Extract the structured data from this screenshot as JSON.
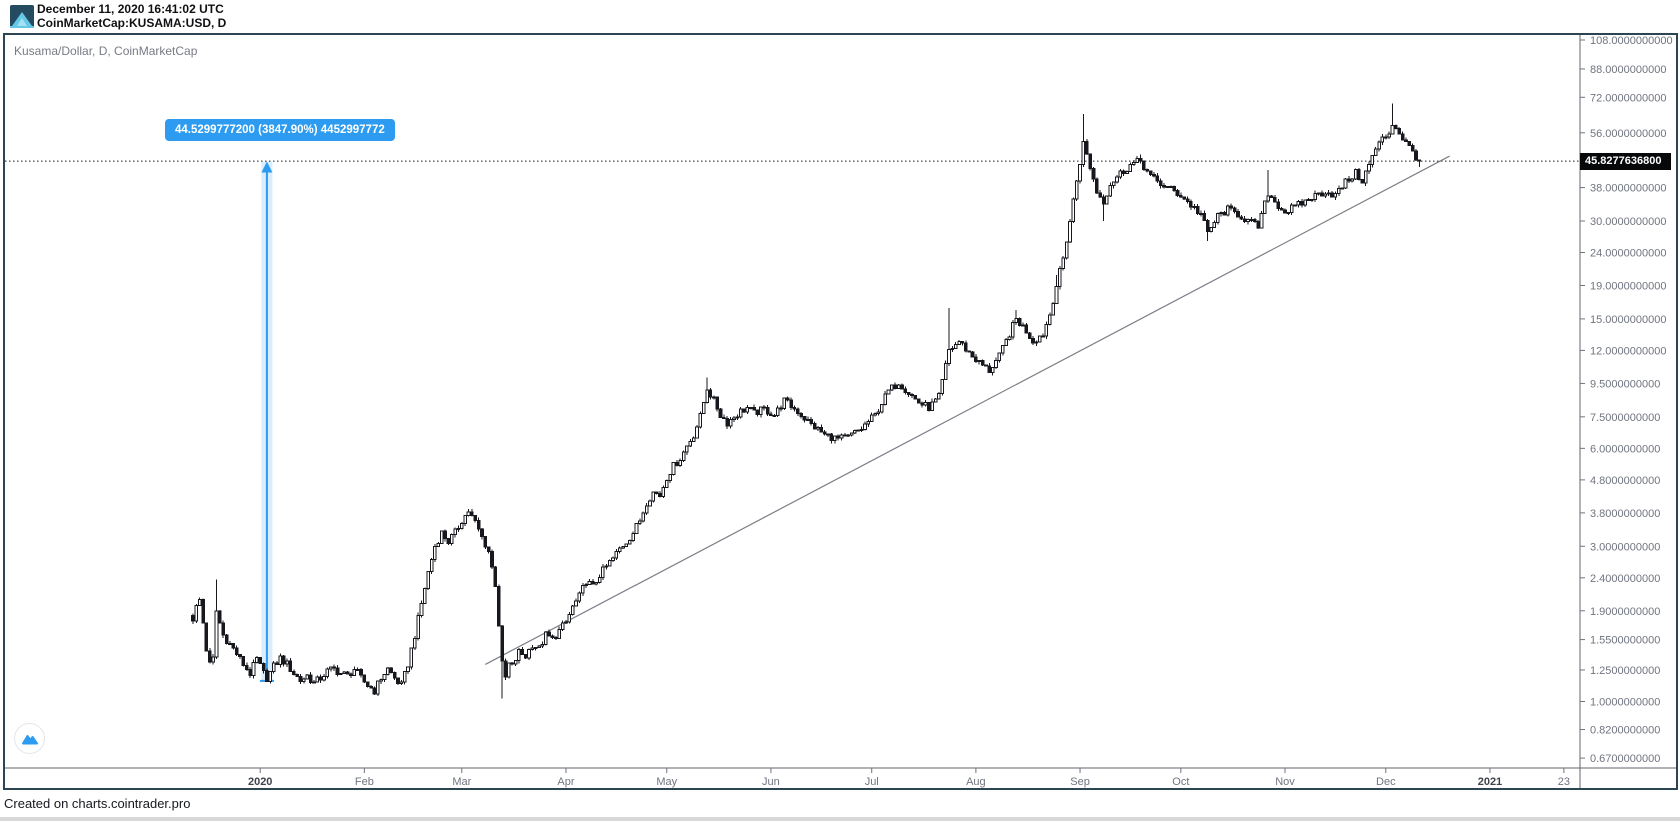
{
  "header": {
    "timestamp": "December 11, 2020 16:41:02 UTC",
    "symbol_line": "CoinMarketCap:KUSAMA:USD, D"
  },
  "legend": "Kusama/Dollar, D, CoinMarketCap",
  "footer": "Created on charts.cointrader.pro",
  "colors": {
    "accent_blue": "#2d9cf0",
    "band_fill": "rgba(45,156,240,0.18)",
    "candle": "#16181d",
    "trendline": "#7b7e87",
    "axis_text": "#70747f",
    "year_text": "#3e434e",
    "tag_bg": "#07080a",
    "tag_text": "#ffffff",
    "frame": "#2b4553",
    "axis_line": "#60646e",
    "dotted_line": "#16181d"
  },
  "chart_data": {
    "type": "candlestick",
    "title": "Kusama/Dollar",
    "source": "CoinMarketCap",
    "interval": "D",
    "scale": "logarithmic",
    "last_price": 45.82776368,
    "price_tag_label": "45.8277636800",
    "price_line": 45.82776368,
    "ylim": [
      0.625,
      113.5
    ],
    "y_ticks": [
      108,
      88,
      72,
      56,
      38,
      30,
      24,
      19,
      15,
      12,
      9.5,
      7.5,
      6,
      4.8,
      3.8,
      3,
      2.4,
      1.9,
      1.55,
      1.25,
      1,
      0.82,
      0.67
    ],
    "y_tick_decimals": 10,
    "x_ticks": [
      {
        "label": "2020",
        "day": 20,
        "year": true
      },
      {
        "label": "Feb",
        "day": 51
      },
      {
        "label": "Mar",
        "day": 80
      },
      {
        "label": "Apr",
        "day": 111
      },
      {
        "label": "May",
        "day": 141
      },
      {
        "label": "Jun",
        "day": 172
      },
      {
        "label": "Jul",
        "day": 202
      },
      {
        "label": "Aug",
        "day": 233
      },
      {
        "label": "Sep",
        "day": 264
      },
      {
        "label": "Oct",
        "day": 294
      },
      {
        "label": "Nov",
        "day": 325
      },
      {
        "label": "Dec",
        "day": 355
      },
      {
        "label": "2021",
        "day": 386,
        "year": true
      },
      {
        "label": "23",
        "day": 408
      }
    ],
    "days": 366,
    "price_path": [
      [
        0,
        1.8
      ],
      [
        1,
        1.95
      ],
      [
        2,
        2.05
      ],
      [
        3,
        1.75
      ],
      [
        4,
        1.45
      ],
      [
        5,
        1.3
      ],
      [
        6,
        1.35
      ],
      [
        7,
        1.9
      ],
      [
        9,
        1.6
      ],
      [
        11,
        1.5
      ],
      [
        13,
        1.4
      ],
      [
        15,
        1.3
      ],
      [
        17,
        1.22
      ],
      [
        19,
        1.35
      ],
      [
        21,
        1.22
      ],
      [
        22,
        1.18
      ],
      [
        24,
        1.28
      ],
      [
        26,
        1.36
      ],
      [
        28,
        1.3
      ],
      [
        30,
        1.22
      ],
      [
        32,
        1.16
      ],
      [
        34,
        1.2
      ],
      [
        36,
        1.14
      ],
      [
        38,
        1.18
      ],
      [
        40,
        1.24
      ],
      [
        42,
        1.26
      ],
      [
        44,
        1.22
      ],
      [
        46,
        1.2
      ],
      [
        48,
        1.26
      ],
      [
        50,
        1.18
      ],
      [
        52,
        1.12
      ],
      [
        54,
        1.08
      ],
      [
        56,
        1.18
      ],
      [
        58,
        1.26
      ],
      [
        60,
        1.18
      ],
      [
        62,
        1.12
      ],
      [
        64,
        1.3
      ],
      [
        66,
        1.6
      ],
      [
        68,
        2.0
      ],
      [
        70,
        2.5
      ],
      [
        72,
        3.0
      ],
      [
        74,
        3.3
      ],
      [
        76,
        3.1
      ],
      [
        78,
        3.3
      ],
      [
        80,
        3.6
      ],
      [
        82,
        3.85
      ],
      [
        84,
        3.55
      ],
      [
        86,
        3.2
      ],
      [
        88,
        2.9
      ],
      [
        90,
        2.3
      ],
      [
        92,
        1.3
      ],
      [
        93,
        1.18
      ],
      [
        94,
        1.3
      ],
      [
        95,
        1.28
      ],
      [
        97,
        1.42
      ],
      [
        99,
        1.38
      ],
      [
        101,
        1.5
      ],
      [
        103,
        1.45
      ],
      [
        105,
        1.6
      ],
      [
        107,
        1.55
      ],
      [
        109,
        1.65
      ],
      [
        111,
        1.75
      ],
      [
        113,
        1.95
      ],
      [
        115,
        2.1
      ],
      [
        117,
        2.35
      ],
      [
        119,
        2.25
      ],
      [
        121,
        2.45
      ],
      [
        123,
        2.6
      ],
      [
        125,
        2.75
      ],
      [
        127,
        2.95
      ],
      [
        129,
        3.1
      ],
      [
        131,
        3.3
      ],
      [
        133,
        3.6
      ],
      [
        135,
        4.1
      ],
      [
        137,
        4.4
      ],
      [
        139,
        4.3
      ],
      [
        141,
        4.9
      ],
      [
        143,
        5.3
      ],
      [
        145,
        5.6
      ],
      [
        147,
        6.1
      ],
      [
        149,
        6.6
      ],
      [
        151,
        7.5
      ],
      [
        153,
        9.2
      ],
      [
        155,
        8.4
      ],
      [
        157,
        7.6
      ],
      [
        159,
        7.2
      ],
      [
        161,
        7.5
      ],
      [
        163,
        7.8
      ],
      [
        165,
        8.0
      ],
      [
        167,
        7.7
      ],
      [
        170,
        7.9
      ],
      [
        173,
        7.6
      ],
      [
        176,
        8.4
      ],
      [
        180,
        7.8
      ],
      [
        184,
        7.1
      ],
      [
        188,
        6.6
      ],
      [
        192,
        6.4
      ],
      [
        195,
        6.5
      ],
      [
        199,
        6.9
      ],
      [
        203,
        7.6
      ],
      [
        207,
        9.0
      ],
      [
        210,
        9.6
      ],
      [
        213,
        8.9
      ],
      [
        216,
        8.3
      ],
      [
        219,
        8.0
      ],
      [
        222,
        8.6
      ],
      [
        225,
        12.0
      ],
      [
        228,
        12.8
      ],
      [
        231,
        11.8
      ],
      [
        234,
        11.0
      ],
      [
        237,
        10.4
      ],
      [
        240,
        11.5
      ],
      [
        243,
        13.5
      ],
      [
        245,
        15.0
      ],
      [
        248,
        13.8
      ],
      [
        250,
        12.8
      ],
      [
        253,
        13.5
      ],
      [
        255,
        15.5
      ],
      [
        257,
        19.0
      ],
      [
        259,
        23.0
      ],
      [
        261,
        30.0
      ],
      [
        263,
        40.0
      ],
      [
        265,
        52.0
      ],
      [
        267,
        44.0
      ],
      [
        269,
        37.0
      ],
      [
        271,
        34.5
      ],
      [
        273,
        39.0
      ],
      [
        276,
        42.0
      ],
      [
        279,
        44.5
      ],
      [
        282,
        46.0
      ],
      [
        285,
        41.0
      ],
      [
        288,
        39.0
      ],
      [
        291,
        37.5
      ],
      [
        294,
        36.0
      ],
      [
        297,
        33.5
      ],
      [
        300,
        31.5
      ],
      [
        302,
        27.5
      ],
      [
        305,
        31.0
      ],
      [
        308,
        32.5
      ],
      [
        311,
        31.5
      ],
      [
        314,
        30.0
      ],
      [
        317,
        28.8
      ],
      [
        320,
        36.5
      ],
      [
        323,
        33.5
      ],
      [
        325,
        32.0
      ],
      [
        329,
        33.5
      ],
      [
        333,
        35.5
      ],
      [
        337,
        37.0
      ],
      [
        340,
        36.0
      ],
      [
        343,
        39.5
      ],
      [
        346,
        42.0
      ],
      [
        348,
        40.0
      ],
      [
        350,
        44.5
      ],
      [
        352,
        50.0
      ],
      [
        354,
        53.5
      ],
      [
        356,
        56.0
      ],
      [
        357,
        60.0
      ],
      [
        359,
        56.0
      ],
      [
        361,
        52.0
      ],
      [
        363,
        49.0
      ],
      [
        365,
        45.82776368
      ]
    ],
    "wicks": [
      {
        "day": 7,
        "high": 2.37
      },
      {
        "day": 22,
        "low": 1.157
      },
      {
        "day": 92,
        "low": 1.02
      },
      {
        "day": 153,
        "high": 9.9
      },
      {
        "day": 225,
        "high": 16.2
      },
      {
        "day": 245,
        "high": 16.0
      },
      {
        "day": 257,
        "high": 20.5
      },
      {
        "day": 265,
        "high": 64.0
      },
      {
        "day": 271,
        "low": 30.0
      },
      {
        "day": 282,
        "high": 48.0
      },
      {
        "day": 302,
        "low": 26.0
      },
      {
        "day": 320,
        "high": 43.0
      },
      {
        "day": 357,
        "high": 69.0
      },
      {
        "day": 365,
        "low": 44.0
      }
    ],
    "trendline": {
      "from_day": 87,
      "from_price": 1.3,
      "to_day": 374,
      "to_price": 47.5
    },
    "measure": {
      "day": 22,
      "from_price": 1.157,
      "to_price": 45.687,
      "change": "44.5299777200",
      "percent": "3847.90%",
      "label": "44.5299777200 (3847.90%) 4452997772"
    }
  }
}
